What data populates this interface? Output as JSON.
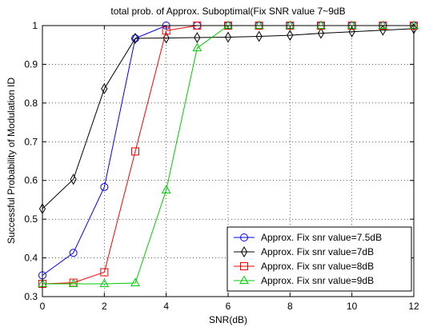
{
  "chart_data": {
    "type": "line",
    "title": "total prob. of Approx. Suboptimal(Fix SNR value 7~9dB",
    "xlabel": "SNR(dB)",
    "ylabel": "Successful Probability of Modulation ID",
    "xlim": [
      0,
      12
    ],
    "ylim": [
      0.3,
      1.0
    ],
    "xticks": [
      0,
      2,
      4,
      6,
      8,
      10,
      12
    ],
    "yticks": [
      0.3,
      0.4,
      0.5,
      0.6,
      0.7,
      0.8,
      0.9,
      1.0
    ],
    "xtick_labels": [
      "0",
      "2",
      "4",
      "6",
      "8",
      "10",
      "12"
    ],
    "ytick_labels": [
      "0.3",
      "0.4",
      "0.5",
      "0.6",
      "0.7",
      "0.8",
      "0.9",
      "1"
    ],
    "grid": true,
    "legend_position": "bottom-right",
    "x": [
      0,
      1,
      2,
      3,
      4,
      5,
      6,
      7,
      8,
      9,
      10,
      11,
      12
    ],
    "series": [
      {
        "name": "Approx. Fix snr value=7.5dB",
        "color": "#0000ff",
        "marker": "circle",
        "values": [
          0.355,
          0.413,
          0.583,
          0.967,
          1.0,
          1.0,
          1.0,
          1.0,
          1.0,
          1.0,
          1.0,
          1.0,
          1.0
        ]
      },
      {
        "name": "Approx. Fix snr value=7dB",
        "color": "#000000",
        "marker": "diamond",
        "values": [
          0.527,
          0.603,
          0.837,
          0.967,
          0.968,
          0.969,
          0.97,
          0.972,
          0.975,
          0.98,
          0.984,
          0.988,
          0.992
        ]
      },
      {
        "name": "Approx. Fix snr value=8dB",
        "color": "#ff0000",
        "marker": "square",
        "values": [
          0.333,
          0.336,
          0.363,
          0.675,
          0.987,
          1.0,
          1.0,
          1.0,
          1.0,
          1.0,
          1.0,
          1.0,
          1.0
        ]
      },
      {
        "name": "Approx. Fix snr value=9dB",
        "color": "#00cc00",
        "marker": "triangle",
        "values": [
          0.333,
          0.333,
          0.333,
          0.335,
          0.575,
          0.942,
          1.0,
          1.0,
          1.0,
          1.0,
          1.0,
          1.0,
          1.0
        ]
      }
    ]
  }
}
